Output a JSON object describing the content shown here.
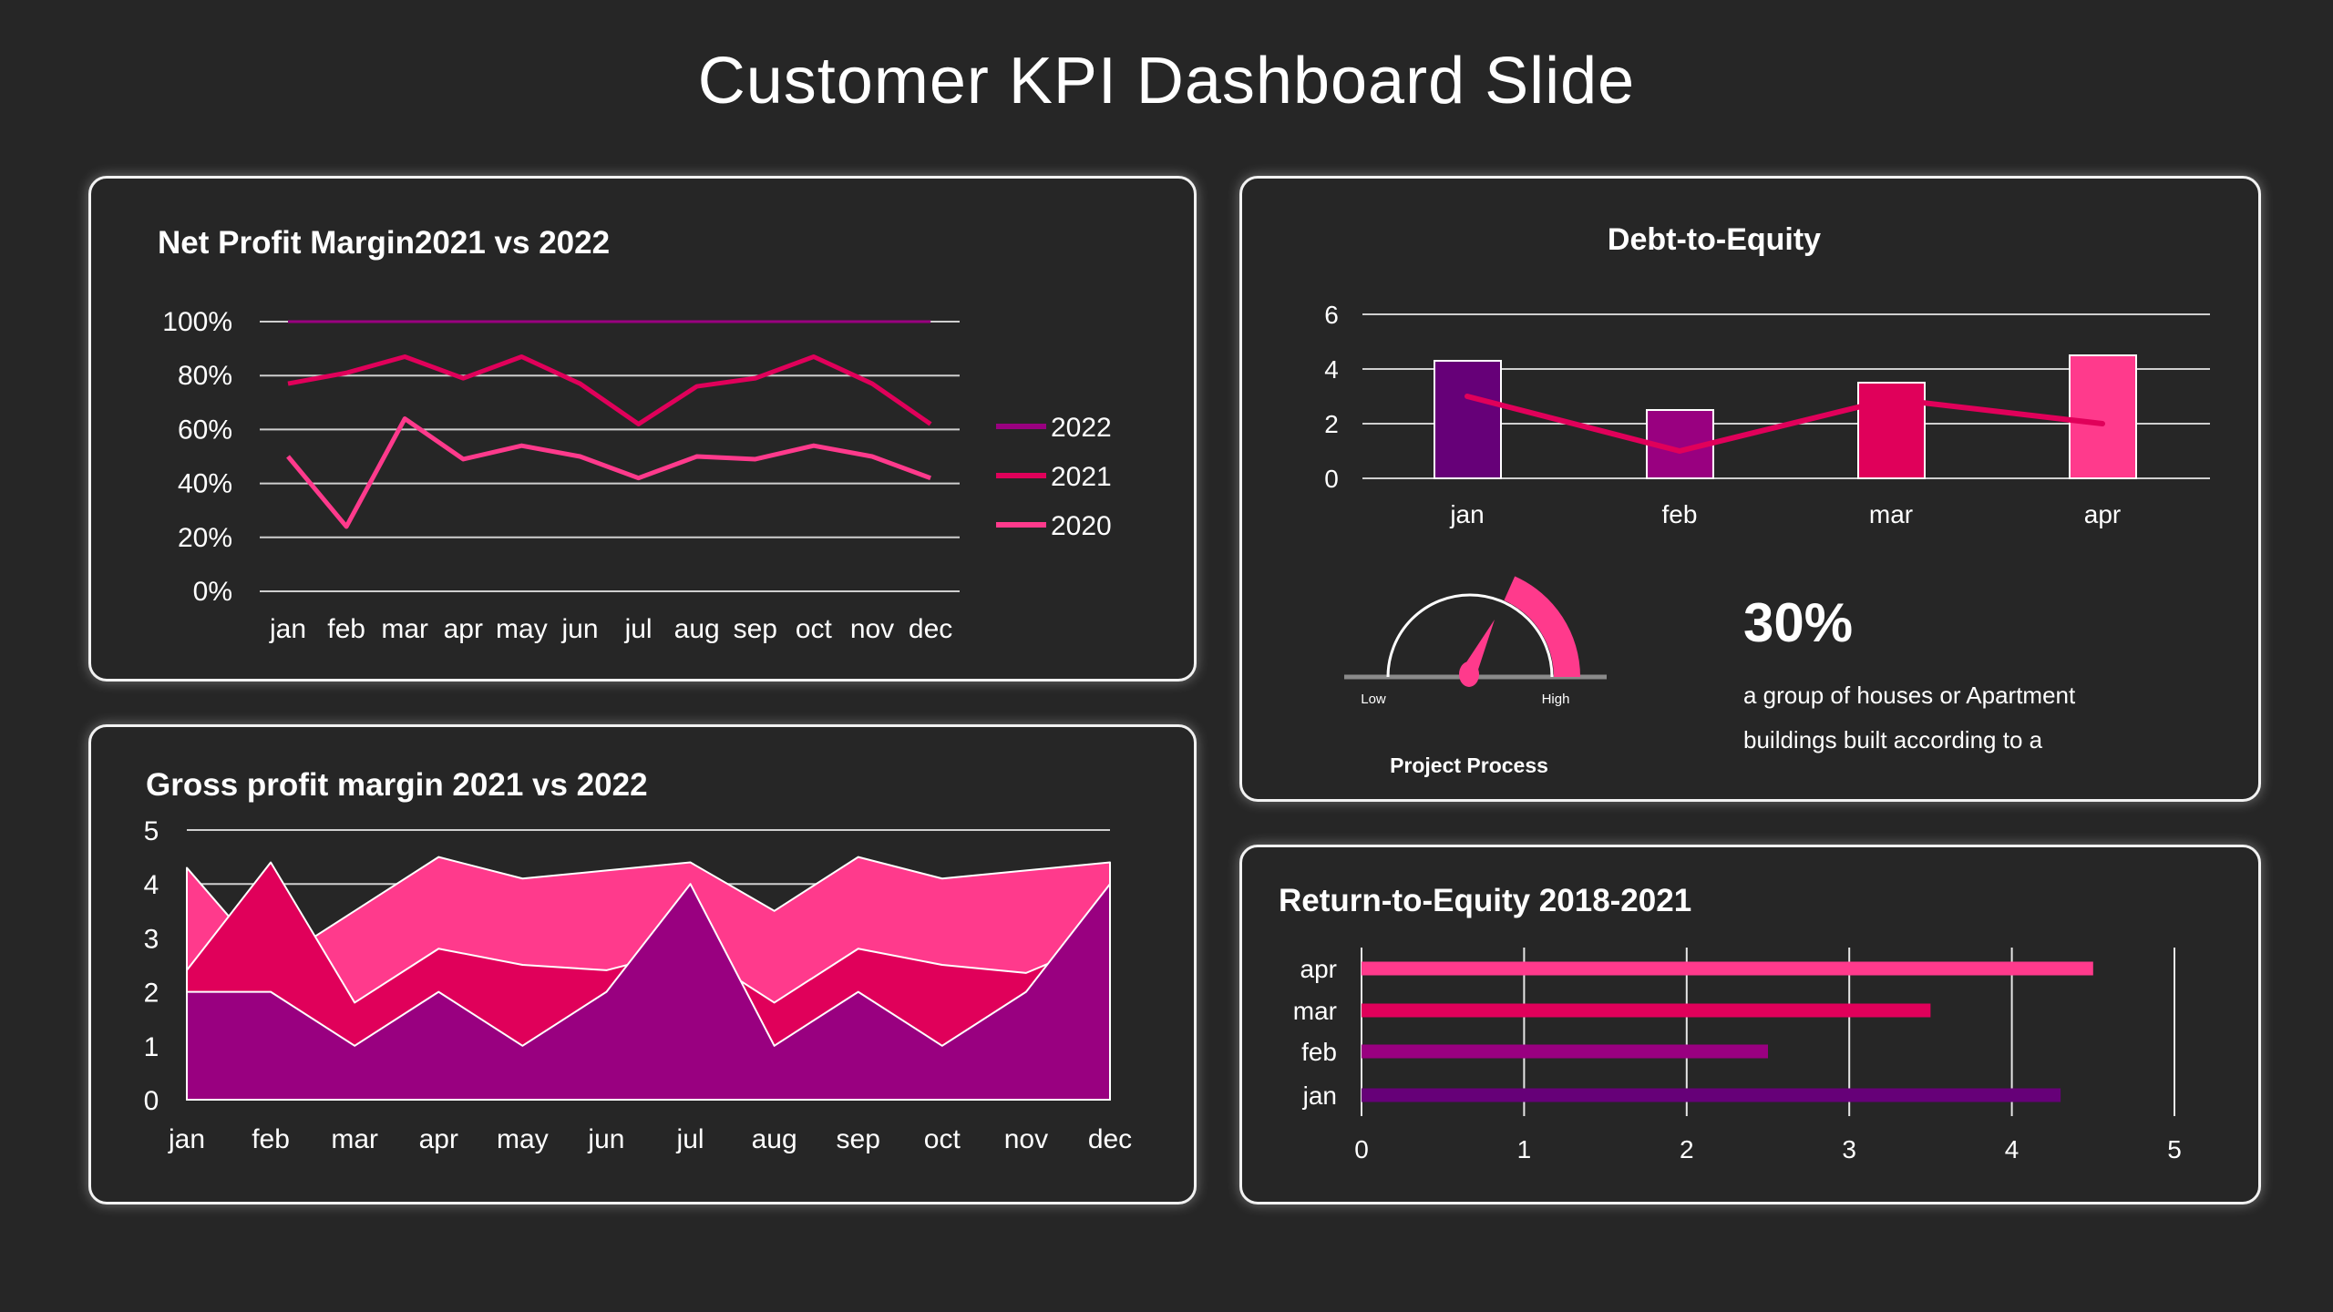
{
  "title": "Customer KPI Dashboard Slide",
  "colors": {
    "dark_purple": "#660078",
    "purple": "#990080",
    "red": "#E0005A",
    "pink": "#FF3A8C",
    "background": "#262626"
  },
  "chart_data": [
    {
      "id": "net_profit",
      "type": "line",
      "title": "Net Profit Margin2021 vs 2022",
      "categories": [
        "jan",
        "feb",
        "mar",
        "apr",
        "may",
        "jun",
        "jul",
        "aug",
        "sep",
        "oct",
        "nov",
        "dec"
      ],
      "yticks": [
        "0%",
        "20%",
        "40%",
        "60%",
        "80%",
        "100%"
      ],
      "ylim": [
        0,
        100
      ],
      "grid": true,
      "legend": "right",
      "series": [
        {
          "name": "2022",
          "color": "#990080",
          "values": [
            100,
            100,
            100,
            100,
            100,
            100,
            100,
            100,
            100,
            100,
            100,
            100
          ]
        },
        {
          "name": "2021",
          "color": "#E0005A",
          "values": [
            77,
            81,
            87,
            79,
            87,
            77,
            62,
            76,
            79,
            87,
            77,
            62
          ]
        },
        {
          "name": "2020",
          "color": "#FF3A8C",
          "values": [
            50,
            24,
            64,
            49,
            54,
            50,
            42,
            50,
            49,
            54,
            50,
            42
          ]
        }
      ]
    },
    {
      "id": "gross_profit",
      "type": "area",
      "title": "Gross profit margin 2021 vs 2022",
      "categories": [
        "jan",
        "feb",
        "mar",
        "apr",
        "may",
        "jun",
        "jul",
        "aug",
        "sep",
        "oct",
        "nov",
        "dec"
      ],
      "yticks": [
        "0",
        "1",
        "2",
        "3",
        "4",
        "5"
      ],
      "ylim": [
        0,
        5
      ],
      "grid": true,
      "series": [
        {
          "color": "#FF3A8C",
          "values": [
            4.3,
            2.5,
            3.5,
            4.5,
            4.1,
            4.25,
            4.4,
            3.5,
            4.5,
            4.1,
            4.25,
            4.4
          ]
        },
        {
          "color": "#E0005A",
          "values": [
            2.4,
            4.4,
            1.8,
            2.8,
            2.5,
            2.4,
            2.8,
            1.8,
            2.8,
            2.5,
            2.35,
            3.0
          ]
        },
        {
          "color": "#990080",
          "values": [
            2,
            2,
            1,
            2,
            1,
            2,
            4,
            1,
            2,
            1,
            2,
            4
          ]
        }
      ]
    },
    {
      "id": "debt_to_equity",
      "type": "bar",
      "title": "Debt-to-Equity",
      "categories": [
        "jan",
        "feb",
        "mar",
        "apr"
      ],
      "yticks": [
        "0",
        "2",
        "4",
        "6"
      ],
      "ylim": [
        0,
        6
      ],
      "grid": true,
      "bar_values": [
        4.3,
        2.5,
        3.5,
        4.5
      ],
      "bar_colors": [
        "#660078",
        "#990080",
        "#E0005A",
        "#FF3A8C"
      ],
      "line_values": [
        3,
        1,
        2.9,
        2
      ],
      "line_color": "#E0005A"
    },
    {
      "id": "return_to_equity",
      "type": "bar",
      "orientation": "horizontal",
      "title": "Return-to-Equity 2018-2021",
      "categories": [
        "jan",
        "feb",
        "mar",
        "apr"
      ],
      "values": [
        4.3,
        2.5,
        3.5,
        4.5
      ],
      "colors": [
        "#660078",
        "#990080",
        "#E0005A",
        "#FF3A8C"
      ],
      "xticks": [
        "0",
        "1",
        "2",
        "3",
        "4",
        "5"
      ],
      "xlim": [
        0,
        5
      ],
      "grid": true
    }
  ],
  "gauge": {
    "label": "Project Process",
    "low_label": "Low",
    "high_label": "High",
    "level_percent": 30,
    "color": "#FF3A8C"
  },
  "kpi": {
    "value": "30%",
    "description_line1": "a group of houses or Apartment",
    "description_line2": "buildings built according to a"
  }
}
